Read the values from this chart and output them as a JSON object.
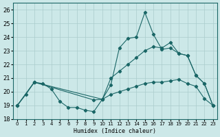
{
  "xlabel": "Humidex (Indice chaleur)",
  "bg_color": "#cce8e8",
  "grid_color": "#aacccc",
  "line_color": "#1a6666",
  "ylim": [
    18,
    26.5
  ],
  "xlim": [
    -0.5,
    23.5
  ],
  "yticks": [
    18,
    19,
    20,
    21,
    22,
    23,
    24,
    25,
    26
  ],
  "xticks": [
    0,
    1,
    2,
    3,
    4,
    5,
    6,
    7,
    8,
    9,
    10,
    11,
    12,
    13,
    14,
    15,
    16,
    17,
    18,
    19,
    20,
    21,
    22,
    23
  ],
  "line1_x": [
    0,
    1,
    2,
    3,
    4,
    5,
    6,
    7,
    8,
    9,
    10,
    11,
    12,
    13,
    14,
    15,
    16,
    17,
    18,
    19,
    20,
    21,
    22,
    23
  ],
  "line1_y": [
    19.0,
    19.8,
    20.7,
    20.6,
    20.2,
    19.3,
    18.85,
    18.85,
    18.65,
    18.55,
    19.45,
    20.5,
    23.2,
    23.9,
    24.0,
    25.8,
    24.2,
    23.1,
    23.2,
    22.8,
    22.65,
    21.2,
    20.6,
    19.0
  ],
  "line2_x": [
    0,
    2,
    10,
    11,
    12,
    13,
    14,
    15,
    16,
    17,
    18,
    19,
    20,
    21,
    22,
    23
  ],
  "line2_y": [
    19.0,
    20.7,
    19.45,
    21.0,
    21.5,
    22.0,
    22.5,
    23.0,
    23.3,
    23.2,
    23.6,
    22.8,
    22.65,
    21.2,
    20.6,
    19.0
  ],
  "line3_x": [
    0,
    2,
    9,
    10,
    11,
    12,
    13,
    14,
    15,
    16,
    17,
    18,
    19,
    20,
    21,
    22,
    23
  ],
  "line3_y": [
    19.0,
    20.7,
    19.4,
    19.45,
    19.8,
    20.0,
    20.2,
    20.4,
    20.6,
    20.7,
    20.7,
    20.8,
    20.9,
    20.6,
    20.4,
    19.5,
    19.0
  ]
}
